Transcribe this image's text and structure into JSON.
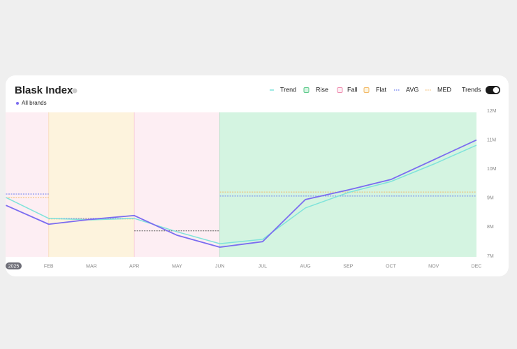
{
  "chart_data": {
    "type": "line",
    "title": "Blask Index",
    "categories": [
      "2025",
      "FEB",
      "MAR",
      "APR",
      "MAY",
      "JUN",
      "JUL",
      "AUG",
      "SEP",
      "OCT",
      "NOV",
      "DEC"
    ],
    "series": [
      {
        "name": "All brands",
        "color": "#7b6cf0",
        "values": [
          8750000,
          8100000,
          8270000,
          8400000,
          7720000,
          7310000,
          7500000,
          8950000,
          9280000,
          9640000,
          10320000,
          11000000
        ]
      },
      {
        "name": "Trend",
        "color": "#7fe3da",
        "values": [
          9020000,
          8300000,
          8250000,
          8300000,
          7840000,
          7430000,
          7580000,
          8660000,
          9190000,
          9570000,
          10170000,
          10820000
        ]
      }
    ],
    "legend_items": [
      {
        "name": "Rise",
        "color": "#5cc98a",
        "fill": "#d4f4e1",
        "shape": "square"
      },
      {
        "name": "Fall",
        "color": "#ef8db0",
        "fill": "#fdeef3",
        "shape": "square"
      },
      {
        "name": "Flat",
        "color": "#f2b865",
        "fill": "#fdf3dd",
        "shape": "square"
      },
      {
        "name": "AVG",
        "color": "#6b7cf0",
        "shape": "dotted"
      },
      {
        "name": "MED",
        "color": "#f2b865",
        "shape": "dotted"
      }
    ],
    "regions": [
      {
        "kind": "Fall",
        "from": "2025",
        "to": "FEB",
        "avg": 9140000,
        "med": 9020000
      },
      {
        "kind": "Flat",
        "from": "FEB",
        "to": "APR",
        "avg": 8300000,
        "med": 8280000
      },
      {
        "kind": "Fall",
        "from": "APR",
        "to": "JUN",
        "avg": 7870000
      },
      {
        "kind": "Rise",
        "from": "JUN",
        "to": "DEC",
        "avg": 9070000,
        "med": 9210000
      }
    ],
    "toggle": {
      "label": "Trends",
      "on": true
    },
    "ylim": [
      7000000,
      12000000
    ],
    "yticks": [
      {
        "value": 7000000,
        "label": "7M"
      },
      {
        "value": 8000000,
        "label": "8M"
      },
      {
        "value": 9000000,
        "label": "9M"
      },
      {
        "value": 10000000,
        "label": "10M"
      },
      {
        "value": 11000000,
        "label": "11M"
      },
      {
        "value": 12000000,
        "label": "12M"
      }
    ]
  }
}
